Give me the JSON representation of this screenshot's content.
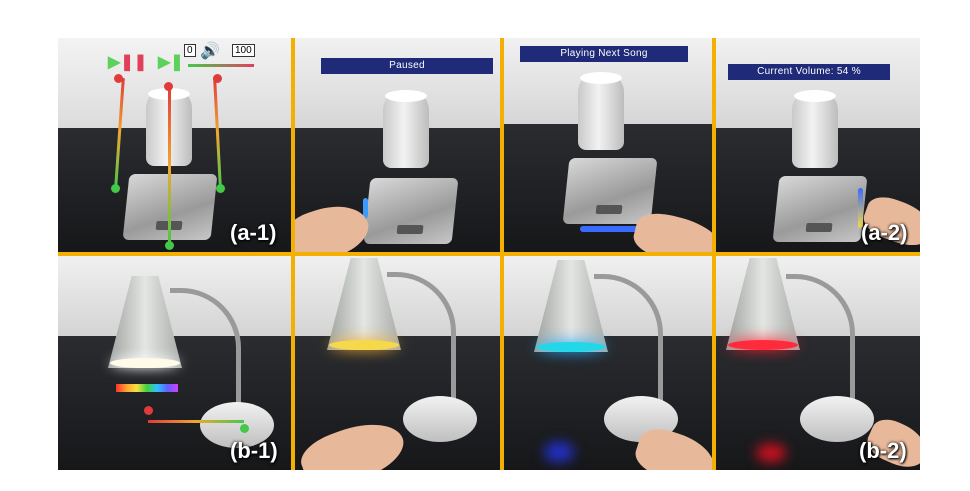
{
  "panels": {
    "a1": {
      "label": "(a-1)"
    },
    "a2": {
      "banner": "Paused"
    },
    "a3": {
      "banner": "Playing Next Song"
    },
    "a4": {
      "banner": "Current Volume: 54 %",
      "label": "(a-2)"
    },
    "b1": {
      "label": "(b-1)"
    },
    "b4": {
      "label": "(b-2)"
    }
  },
  "volume_widget": {
    "min": "0",
    "max": "100"
  },
  "colors": {
    "frame": "#f4b000",
    "banner": "#1f2a78",
    "glow_blue": "#3a6bff",
    "lamp_yellow": "#f6d94a",
    "lamp_cyan": "#22d8e8",
    "lamp_red": "#ff2a3c"
  }
}
